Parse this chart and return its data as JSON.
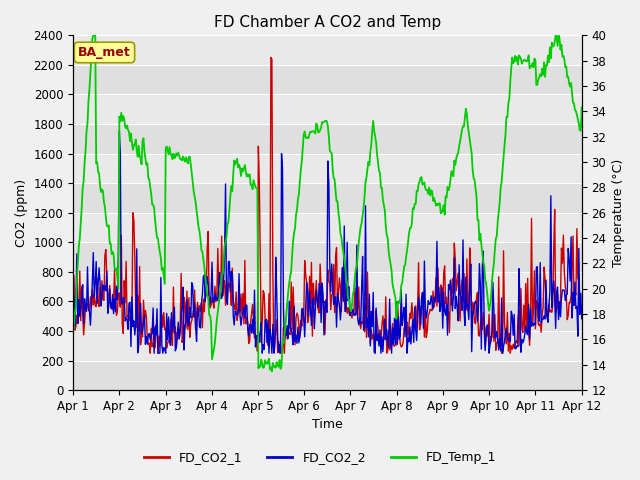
{
  "title": "FD Chamber A CO2 and Temp",
  "xlabel": "Time",
  "ylabel_left": "CO2 (ppm)",
  "ylabel_right": "Temperature (°C)",
  "ylim_left": [
    0,
    2400
  ],
  "ylim_right": [
    12,
    40
  ],
  "yticks_left": [
    0,
    200,
    400,
    600,
    800,
    1000,
    1200,
    1400,
    1600,
    1800,
    2000,
    2200,
    2400
  ],
  "yticks_right": [
    12,
    14,
    16,
    18,
    20,
    22,
    24,
    26,
    28,
    30,
    32,
    34,
    36,
    38,
    40
  ],
  "xtick_labels": [
    "Apr 1",
    "Apr 2",
    "Apr 3",
    "Apr 4",
    "Apr 5",
    "Apr 6",
    "Apr 7",
    "Apr 8",
    "Apr 9",
    "Apr 10",
    "Apr 11",
    "Apr 12"
  ],
  "color_co2_1": "#cc0000",
  "color_co2_2": "#0000cc",
  "color_temp": "#00cc00",
  "legend_labels": [
    "FD_CO2_1",
    "FD_CO2_2",
    "FD_Temp_1"
  ],
  "annotation_text": "BA_met",
  "annotation_box_color": "#ffff99",
  "annotation_text_color": "#990000",
  "bg_color": "#e8e8e8",
  "plot_bg_color": "#f0f0f0",
  "line_width": 1.0,
  "n_days": 11,
  "samples_per_day": 48
}
